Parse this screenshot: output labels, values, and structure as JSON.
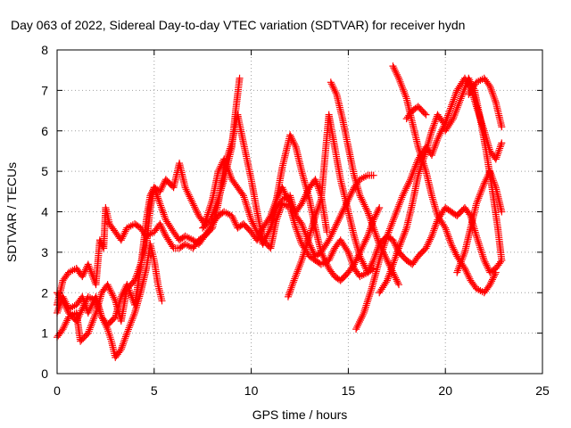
{
  "chart_data": {
    "type": "scatter",
    "title": "Day 063 of 2022, Sidereal Day-to-day VTEC variation (SDTVAR) for receiver hydn",
    "xlabel": "GPS time / hours",
    "ylabel": "SDTVAR / TECUs",
    "xlim": [
      0,
      25
    ],
    "ylim": [
      0,
      8
    ],
    "xticks": [
      0,
      5,
      10,
      15,
      20,
      25
    ],
    "yticks": [
      0,
      1,
      2,
      3,
      4,
      5,
      6,
      7,
      8
    ],
    "grid": true,
    "marker": "+",
    "color": "#ff0000",
    "series": [
      {
        "values": [
          [
            0.0,
            1.5
          ],
          [
            0.3,
            1.9
          ],
          [
            0.6,
            1.6
          ],
          [
            1.0,
            1.7
          ],
          [
            1.3,
            1.9
          ],
          [
            1.6,
            1.5
          ],
          [
            2.0,
            1.9
          ],
          [
            2.3,
            1.4
          ],
          [
            2.6,
            1.2
          ],
          [
            3.0,
            1.4
          ],
          [
            3.3,
            1.9
          ],
          [
            3.6,
            2.2
          ],
          [
            4.0,
            1.7
          ],
          [
            4.3,
            2.6
          ],
          [
            4.6,
            3.8
          ],
          [
            4.8,
            4.4
          ],
          [
            5.0,
            4.6
          ],
          [
            5.3,
            4.5
          ],
          [
            5.6,
            4.8
          ],
          [
            6.0,
            4.6
          ],
          [
            6.3,
            5.2
          ],
          [
            6.6,
            4.6
          ],
          [
            7.0,
            4.2
          ],
          [
            7.3,
            3.9
          ],
          [
            7.6,
            3.7
          ],
          [
            8.0,
            4.3
          ],
          [
            8.3,
            5.0
          ],
          [
            8.6,
            5.3
          ],
          [
            9.0,
            4.8
          ],
          [
            9.3,
            4.6
          ],
          [
            9.6,
            4.4
          ],
          [
            10.0,
            3.8
          ],
          [
            10.3,
            3.5
          ],
          [
            10.6,
            3.2
          ],
          [
            11.0,
            3.6
          ],
          [
            11.3,
            4.1
          ],
          [
            11.6,
            4.3
          ],
          [
            12.0,
            4.4
          ],
          [
            12.3,
            3.9
          ],
          [
            12.6,
            3.7
          ],
          [
            13.0,
            3.2
          ],
          [
            13.3,
            2.9
          ],
          [
            13.6,
            3.0
          ],
          [
            14.0,
            3.3
          ],
          [
            14.3,
            3.6
          ],
          [
            14.6,
            3.9
          ],
          [
            15.0,
            4.3
          ],
          [
            15.3,
            4.6
          ],
          [
            15.6,
            4.8
          ],
          [
            16.0,
            4.9
          ],
          [
            16.3,
            4.9
          ]
        ]
      },
      {
        "values": [
          [
            0.0,
            1.7
          ],
          [
            0.3,
            2.3
          ],
          [
            0.6,
            2.5
          ],
          [
            1.0,
            2.6
          ],
          [
            1.3,
            2.4
          ],
          [
            1.6,
            2.7
          ],
          [
            2.0,
            2.2
          ],
          [
            2.2,
            3.3
          ],
          [
            2.4,
            3.1
          ],
          [
            2.5,
            4.1
          ],
          [
            2.7,
            3.7
          ],
          [
            3.0,
            3.5
          ],
          [
            3.3,
            3.3
          ],
          [
            3.6,
            3.6
          ],
          [
            4.0,
            3.7
          ],
          [
            4.3,
            3.6
          ],
          [
            4.6,
            3.4
          ],
          [
            5.0,
            3.5
          ],
          [
            5.3,
            3.7
          ],
          [
            5.6,
            3.4
          ],
          [
            6.0,
            3.1
          ],
          [
            6.3,
            3.1
          ],
          [
            6.6,
            3.2
          ],
          [
            7.0,
            3.1
          ],
          [
            7.3,
            3.3
          ],
          [
            7.6,
            3.4
          ],
          [
            8.0,
            3.6
          ],
          [
            8.3,
            4.2
          ],
          [
            8.6,
            5.1
          ],
          [
            9.0,
            5.7
          ],
          [
            9.3,
            6.4
          ],
          [
            9.6,
            5.7
          ],
          [
            10.0,
            4.8
          ],
          [
            10.3,
            4.0
          ],
          [
            10.6,
            3.3
          ],
          [
            11.0,
            3.1
          ],
          [
            11.3,
            3.8
          ],
          [
            11.6,
            4.2
          ],
          [
            12.0,
            4.1
          ],
          [
            12.3,
            3.6
          ],
          [
            12.6,
            3.2
          ],
          [
            13.0,
            2.9
          ],
          [
            13.3,
            2.8
          ],
          [
            13.6,
            2.7
          ],
          [
            14.0,
            2.8
          ],
          [
            14.3,
            3.1
          ],
          [
            14.6,
            3.3
          ],
          [
            15.0,
            3.0
          ],
          [
            15.3,
            2.6
          ],
          [
            15.6,
            2.4
          ],
          [
            16.0,
            2.5
          ],
          [
            16.3,
            2.8
          ],
          [
            16.6,
            3.2
          ],
          [
            17.0,
            3.4
          ],
          [
            17.3,
            3.3
          ],
          [
            17.6,
            3.0
          ],
          [
            18.0,
            2.8
          ],
          [
            18.3,
            2.7
          ],
          [
            18.6,
            2.9
          ],
          [
            19.0,
            3.1
          ],
          [
            19.3,
            3.4
          ],
          [
            19.6,
            3.8
          ],
          [
            20.0,
            4.1
          ],
          [
            20.3,
            4.0
          ],
          [
            20.6,
            3.9
          ],
          [
            21.0,
            4.1
          ],
          [
            21.3,
            3.9
          ],
          [
            21.6,
            3.4
          ],
          [
            22.0,
            2.8
          ],
          [
            22.3,
            2.5
          ],
          [
            22.6,
            2.6
          ],
          [
            22.9,
            2.8
          ]
        ]
      },
      {
        "values": [
          [
            0.0,
            0.9
          ],
          [
            0.3,
            1.1
          ],
          [
            0.6,
            1.4
          ],
          [
            1.0,
            1.5
          ],
          [
            1.2,
            0.8
          ],
          [
            1.6,
            1.0
          ],
          [
            2.0,
            1.5
          ],
          [
            2.3,
            2.0
          ],
          [
            2.6,
            2.2
          ],
          [
            3.0,
            1.8
          ],
          [
            3.3,
            1.3
          ],
          [
            3.6,
            2.1
          ],
          [
            4.0,
            2.3
          ],
          [
            4.3,
            2.7
          ],
          [
            4.6,
            3.2
          ],
          [
            4.8,
            4.1
          ],
          [
            5.0,
            4.6
          ],
          [
            5.3,
            4.2
          ],
          [
            5.6,
            3.8
          ],
          [
            6.0,
            3.5
          ],
          [
            6.3,
            3.3
          ],
          [
            6.6,
            3.4
          ],
          [
            7.0,
            3.3
          ],
          [
            7.3,
            3.2
          ],
          [
            7.6,
            3.4
          ],
          [
            8.0,
            3.7
          ],
          [
            8.3,
            3.9
          ],
          [
            8.6,
            4.0
          ],
          [
            9.0,
            3.9
          ],
          [
            9.3,
            3.6
          ],
          [
            9.6,
            3.7
          ],
          [
            10.0,
            3.5
          ],
          [
            10.3,
            3.3
          ],
          [
            10.6,
            3.6
          ],
          [
            11.0,
            3.9
          ],
          [
            11.3,
            4.3
          ],
          [
            11.6,
            4.6
          ],
          [
            12.0,
            4.2
          ],
          [
            12.3,
            4.0
          ],
          [
            12.6,
            4.2
          ],
          [
            13.0,
            4.6
          ],
          [
            13.3,
            4.8
          ],
          [
            13.6,
            4.4
          ],
          [
            13.9,
            3.5
          ]
        ]
      },
      {
        "values": [
          [
            0.0,
            2.0
          ],
          [
            0.3,
            1.8
          ],
          [
            0.6,
            1.5
          ],
          [
            1.0,
            1.3
          ],
          [
            1.3,
            1.6
          ],
          [
            1.6,
            1.9
          ],
          [
            2.0,
            1.8
          ],
          [
            2.3,
            1.4
          ],
          [
            2.6,
            1.1
          ],
          [
            2.8,
            0.8
          ],
          [
            3.0,
            0.4
          ],
          [
            3.3,
            0.6
          ],
          [
            3.6,
            1.0
          ],
          [
            4.0,
            1.5
          ],
          [
            4.3,
            2.0
          ],
          [
            4.6,
            2.6
          ],
          [
            4.8,
            3.2
          ],
          [
            5.0,
            2.8
          ],
          [
            5.2,
            2.2
          ],
          [
            5.4,
            1.8
          ]
        ]
      },
      {
        "values": [
          [
            7.5,
            3.6
          ],
          [
            7.9,
            3.8
          ],
          [
            8.3,
            4.3
          ],
          [
            8.6,
            4.8
          ],
          [
            9.0,
            5.6
          ],
          [
            9.2,
            6.5
          ],
          [
            9.4,
            7.3
          ]
        ]
      },
      {
        "values": [
          [
            11.0,
            3.6
          ],
          [
            11.3,
            4.3
          ],
          [
            11.6,
            5.1
          ],
          [
            12.0,
            5.9
          ],
          [
            12.3,
            5.6
          ],
          [
            12.6,
            5.0
          ],
          [
            13.0,
            4.3
          ],
          [
            13.3,
            3.6
          ],
          [
            13.6,
            3.0
          ],
          [
            14.0,
            2.6
          ],
          [
            14.3,
            2.4
          ],
          [
            14.6,
            2.3
          ],
          [
            15.0,
            2.5
          ],
          [
            15.3,
            2.7
          ],
          [
            15.6,
            3.0
          ],
          [
            16.0,
            3.4
          ],
          [
            16.3,
            3.8
          ],
          [
            16.6,
            4.1
          ]
        ]
      },
      {
        "values": [
          [
            11.9,
            1.9
          ],
          [
            12.2,
            2.3
          ],
          [
            12.6,
            2.8
          ],
          [
            13.0,
            3.4
          ],
          [
            13.3,
            3.9
          ],
          [
            13.6,
            4.3
          ],
          [
            14.0,
            6.4
          ],
          [
            14.3,
            5.6
          ],
          [
            14.6,
            4.8
          ],
          [
            15.0,
            4.0
          ],
          [
            15.3,
            3.4
          ],
          [
            15.6,
            2.9
          ],
          [
            16.0,
            2.5
          ],
          [
            16.3,
            2.6
          ]
        ]
      },
      {
        "values": [
          [
            14.1,
            7.2
          ],
          [
            14.4,
            6.9
          ],
          [
            14.7,
            6.3
          ],
          [
            15.0,
            5.6
          ],
          [
            15.3,
            4.9
          ],
          [
            15.6,
            4.4
          ],
          [
            16.0,
            4.0
          ],
          [
            16.3,
            3.6
          ],
          [
            16.6,
            3.2
          ],
          [
            17.0,
            2.8
          ],
          [
            17.3,
            2.5
          ],
          [
            17.6,
            2.2
          ]
        ]
      },
      {
        "values": [
          [
            15.4,
            1.1
          ],
          [
            15.8,
            1.5
          ],
          [
            16.2,
            2.1
          ],
          [
            16.6,
            2.8
          ],
          [
            17.0,
            3.4
          ],
          [
            17.4,
            3.9
          ],
          [
            17.8,
            4.4
          ],
          [
            18.2,
            4.8
          ],
          [
            18.6,
            5.3
          ],
          [
            19.0,
            5.6
          ],
          [
            19.3,
            5.4
          ],
          [
            19.6,
            5.8
          ],
          [
            20.0,
            6.2
          ],
          [
            20.3,
            6.6
          ],
          [
            20.6,
            7.0
          ],
          [
            21.0,
            7.3
          ],
          [
            21.3,
            7.1
          ],
          [
            21.6,
            6.6
          ],
          [
            22.0,
            6.0
          ],
          [
            22.3,
            5.5
          ],
          [
            22.6,
            5.3
          ],
          [
            22.9,
            5.7
          ]
        ]
      },
      {
        "values": [
          [
            17.3,
            7.6
          ],
          [
            17.6,
            7.3
          ],
          [
            18.0,
            6.8
          ],
          [
            18.3,
            6.2
          ],
          [
            18.6,
            5.6
          ],
          [
            19.0,
            5.0
          ],
          [
            19.3,
            4.4
          ],
          [
            19.6,
            3.9
          ],
          [
            20.0,
            3.6
          ],
          [
            20.3,
            3.2
          ],
          [
            20.6,
            2.9
          ],
          [
            21.0,
            2.6
          ],
          [
            21.3,
            2.3
          ],
          [
            21.6,
            2.1
          ],
          [
            22.0,
            2.0
          ],
          [
            22.3,
            2.2
          ],
          [
            22.6,
            2.5
          ]
        ]
      },
      {
        "values": [
          [
            16.6,
            2.0
          ],
          [
            17.0,
            2.3
          ],
          [
            17.3,
            2.7
          ],
          [
            17.6,
            3.1
          ],
          [
            18.0,
            3.6
          ],
          [
            18.3,
            4.2
          ],
          [
            18.6,
            4.9
          ],
          [
            19.0,
            5.5
          ],
          [
            19.3,
            6.0
          ],
          [
            19.6,
            6.4
          ],
          [
            19.9,
            6.2
          ]
        ]
      },
      {
        "values": [
          [
            18.0,
            6.3
          ],
          [
            18.3,
            6.5
          ],
          [
            18.6,
            6.6
          ],
          [
            19.0,
            6.4
          ]
        ]
      },
      {
        "values": [
          [
            20.6,
            2.5
          ],
          [
            21.0,
            3.0
          ],
          [
            21.3,
            3.6
          ],
          [
            21.6,
            4.2
          ],
          [
            22.0,
            4.7
          ],
          [
            22.3,
            5.0
          ],
          [
            22.6,
            4.6
          ],
          [
            22.9,
            4.0
          ]
        ]
      },
      {
        "values": [
          [
            20.0,
            6.0
          ],
          [
            20.4,
            6.3
          ],
          [
            20.8,
            6.8
          ],
          [
            21.2,
            7.3
          ],
          [
            21.5,
            7.0
          ],
          [
            21.8,
            6.3
          ],
          [
            22.1,
            5.5
          ],
          [
            22.4,
            4.6
          ],
          [
            22.7,
            3.6
          ],
          [
            22.9,
            2.8
          ]
        ]
      },
      {
        "values": [
          [
            21.2,
            6.9
          ],
          [
            21.6,
            7.2
          ],
          [
            22.0,
            7.3
          ],
          [
            22.3,
            7.1
          ],
          [
            22.6,
            6.7
          ],
          [
            22.9,
            6.1
          ]
        ]
      }
    ]
  }
}
